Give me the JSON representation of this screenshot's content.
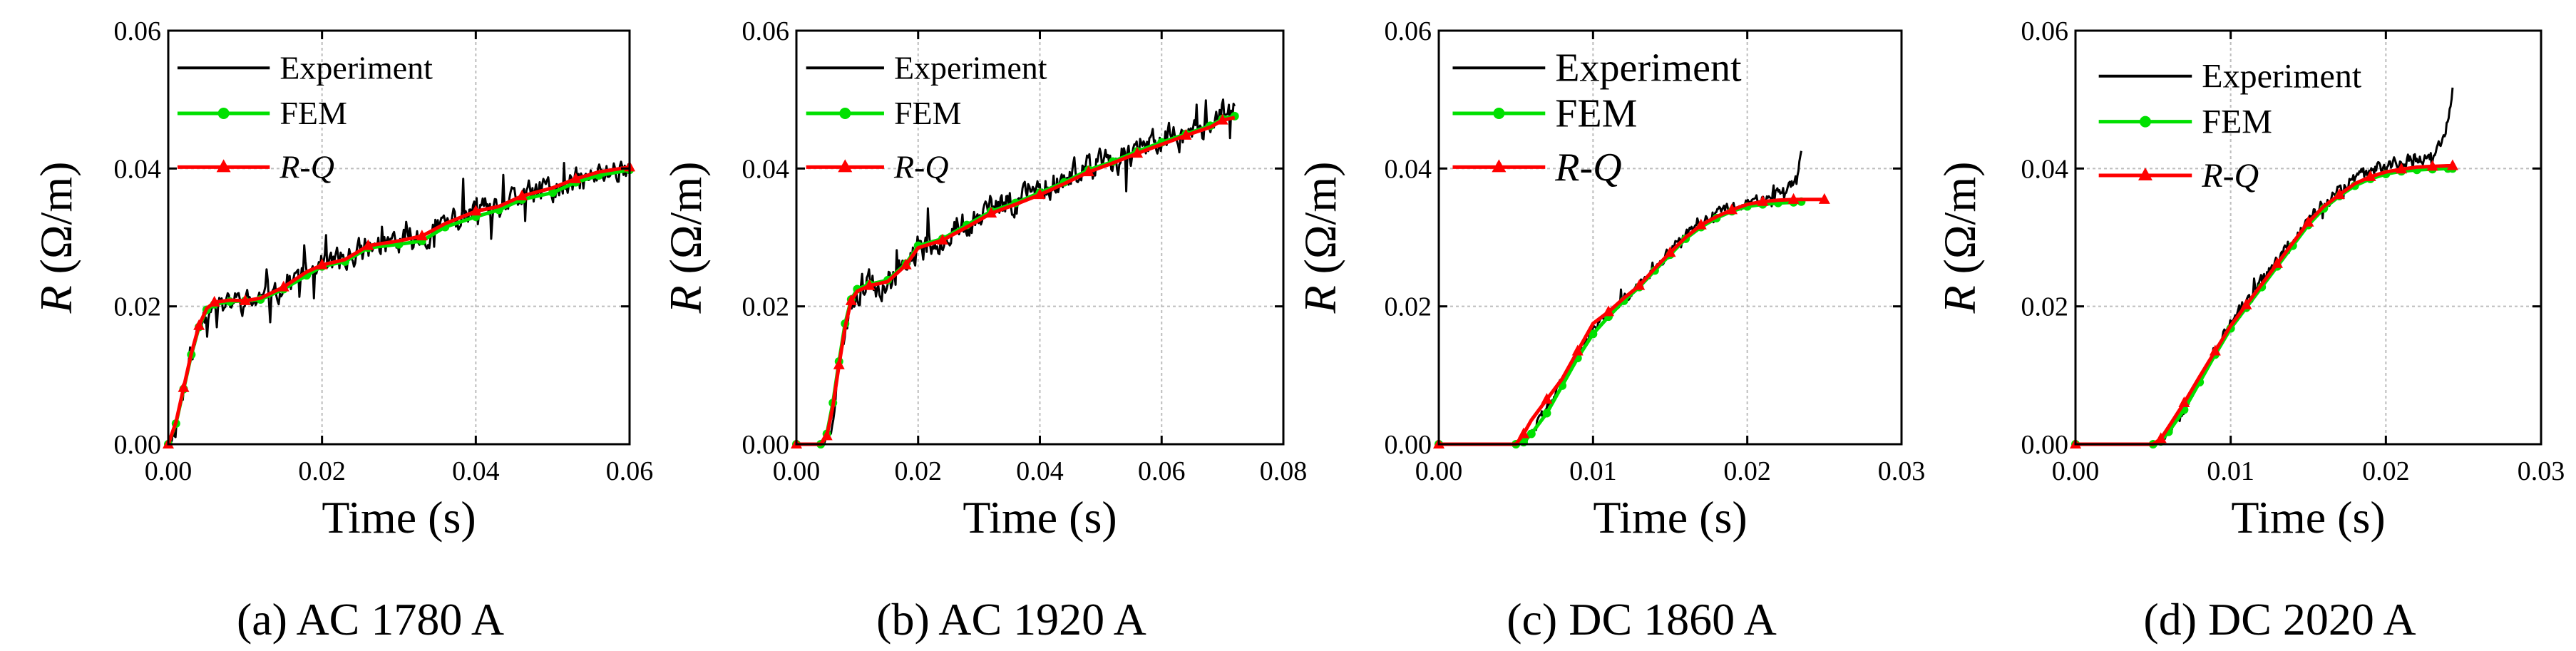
{
  "colors": {
    "experiment": "#000000",
    "fem": "#00e000",
    "rq": "#ff0000",
    "grid": "#bdbdbd"
  },
  "chart_data": [
    {
      "type": "line",
      "caption": "(a) AC 1780 A",
      "xlabel": "Time (s)",
      "ylabel_var": "R",
      "ylabel_unit": " (Ω/m)",
      "xlim": [
        0,
        0.06
      ],
      "ylim": [
        0,
        0.06
      ],
      "xticks": [
        0,
        0.02,
        0.04,
        0.06
      ],
      "xtick_labels": [
        "0.00",
        "0.02",
        "0.04",
        "0.06"
      ],
      "yticks": [
        0,
        0.02,
        0.04,
        0.06
      ],
      "ytick_labels": [
        "0.00",
        "0.02",
        "0.04",
        "0.06"
      ],
      "legend": [
        "Experiment",
        "FEM",
        "R-Q"
      ],
      "series": [
        {
          "name": "Experiment",
          "noise": 0.0016,
          "seed": 11,
          "x": [
            0,
            0.001,
            0.002,
            0.003,
            0.004,
            0.005,
            0.006,
            0.008,
            0.01,
            0.012,
            0.015,
            0.018,
            0.02,
            0.023,
            0.026,
            0.03,
            0.033,
            0.036,
            0.04,
            0.043,
            0.046,
            0.05,
            0.053,
            0.056,
            0.06
          ],
          "y": [
            0,
            0.003,
            0.008,
            0.013,
            0.017,
            0.0195,
            0.0205,
            0.0208,
            0.0205,
            0.021,
            0.023,
            0.025,
            0.026,
            0.027,
            0.0285,
            0.0295,
            0.03,
            0.032,
            0.0335,
            0.034,
            0.036,
            0.037,
            0.038,
            0.039,
            0.0405
          ]
        },
        {
          "name": "FEM",
          "x": [
            0,
            0.001,
            0.002,
            0.003,
            0.004,
            0.005,
            0.006,
            0.008,
            0.01,
            0.012,
            0.015,
            0.018,
            0.02,
            0.023,
            0.026,
            0.03,
            0.033,
            0.036,
            0.04,
            0.043,
            0.046,
            0.05,
            0.053,
            0.056,
            0.06
          ],
          "y": [
            0,
            0.003,
            0.008,
            0.013,
            0.017,
            0.0195,
            0.0203,
            0.0207,
            0.0208,
            0.021,
            0.0225,
            0.0245,
            0.0258,
            0.0265,
            0.0285,
            0.029,
            0.0295,
            0.0315,
            0.033,
            0.034,
            0.0355,
            0.0365,
            0.038,
            0.039,
            0.0398
          ]
        },
        {
          "name": "R-Q",
          "marker": "triangle",
          "x": [
            0,
            0.001,
            0.002,
            0.003,
            0.004,
            0.005,
            0.006,
            0.008,
            0.01,
            0.012,
            0.015,
            0.018,
            0.02,
            0.023,
            0.026,
            0.03,
            0.033,
            0.036,
            0.04,
            0.043,
            0.046,
            0.05,
            0.053,
            0.056,
            0.06
          ],
          "y": [
            0,
            0.0032,
            0.0082,
            0.0132,
            0.0172,
            0.0197,
            0.0206,
            0.0209,
            0.0208,
            0.0212,
            0.0228,
            0.025,
            0.026,
            0.0268,
            0.0288,
            0.0295,
            0.0302,
            0.032,
            0.0338,
            0.0345,
            0.036,
            0.0372,
            0.0385,
            0.0395,
            0.0402
          ]
        }
      ]
    },
    {
      "type": "line",
      "caption": "(b) AC 1920 A",
      "xlabel": "Time (s)",
      "ylabel_var": "R",
      "ylabel_unit": " (Ω/m)",
      "xlim": [
        0,
        0.08
      ],
      "ylim": [
        0,
        0.06
      ],
      "xticks": [
        0,
        0.02,
        0.04,
        0.06,
        0.08
      ],
      "xtick_labels": [
        "0.00",
        "0.02",
        "0.04",
        "0.06",
        "0.08"
      ],
      "yticks": [
        0,
        0.02,
        0.04,
        0.06
      ],
      "ytick_labels": [
        "0.00",
        "0.02",
        "0.04",
        "0.06"
      ],
      "legend": [
        "Experiment",
        "FEM",
        "R-Q"
      ],
      "series": [
        {
          "name": "Experiment",
          "noise": 0.0018,
          "seed": 23,
          "x": [
            0,
            0.004,
            0.005,
            0.006,
            0.007,
            0.008,
            0.009,
            0.01,
            0.012,
            0.015,
            0.018,
            0.02,
            0.024,
            0.028,
            0.032,
            0.036,
            0.04,
            0.044,
            0.048,
            0.052,
            0.056,
            0.06,
            0.064,
            0.068,
            0.07,
            0.072
          ],
          "y": [
            0,
            0,
            0.001,
            0.005,
            0.011,
            0.017,
            0.021,
            0.0225,
            0.023,
            0.0235,
            0.026,
            0.0285,
            0.03,
            0.032,
            0.034,
            0.0355,
            0.037,
            0.0385,
            0.04,
            0.041,
            0.043,
            0.044,
            0.045,
            0.0465,
            0.048,
            0.048
          ]
        },
        {
          "name": "FEM",
          "x": [
            0,
            0.004,
            0.005,
            0.006,
            0.007,
            0.008,
            0.009,
            0.01,
            0.012,
            0.015,
            0.018,
            0.02,
            0.024,
            0.028,
            0.032,
            0.036,
            0.04,
            0.044,
            0.048,
            0.052,
            0.056,
            0.06,
            0.064,
            0.068,
            0.07,
            0.072
          ],
          "y": [
            0,
            0,
            0.0015,
            0.006,
            0.012,
            0.0175,
            0.021,
            0.0225,
            0.0232,
            0.0238,
            0.0262,
            0.0288,
            0.0298,
            0.0318,
            0.0338,
            0.035,
            0.0365,
            0.038,
            0.0398,
            0.041,
            0.0425,
            0.0438,
            0.045,
            0.0462,
            0.0472,
            0.0476
          ]
        },
        {
          "name": "R-Q",
          "marker": "triangle",
          "x": [
            0,
            0.004,
            0.005,
            0.006,
            0.007,
            0.008,
            0.009,
            0.01,
            0.012,
            0.015,
            0.018,
            0.02,
            0.024,
            0.028,
            0.032,
            0.036,
            0.04,
            0.044,
            0.048,
            0.052,
            0.056,
            0.06,
            0.064,
            0.068,
            0.07,
            0.072
          ],
          "y": [
            0,
            0,
            0.0012,
            0.0055,
            0.0115,
            0.017,
            0.0208,
            0.0222,
            0.023,
            0.0236,
            0.026,
            0.0285,
            0.0296,
            0.0315,
            0.0335,
            0.0348,
            0.0362,
            0.0378,
            0.0395,
            0.0408,
            0.0422,
            0.0435,
            0.0448,
            0.046,
            0.047,
            0.0474
          ]
        }
      ]
    },
    {
      "type": "line",
      "caption": "(c) DC 1860 A",
      "xlabel": "Time (s)",
      "ylabel_var": "R",
      "ylabel_unit": " (Ω/m)",
      "xlim": [
        0,
        0.03
      ],
      "ylim": [
        0,
        0.06
      ],
      "xticks": [
        0,
        0.01,
        0.02,
        0.03
      ],
      "xtick_labels": [
        "0.00",
        "0.01",
        "0.02",
        "0.03"
      ],
      "yticks": [
        0,
        0.02,
        0.04,
        0.06
      ],
      "ytick_labels": [
        "0.00",
        "0.02",
        "0.04",
        "0.06"
      ],
      "legend": [
        "Experiment",
        "FEM",
        "R-Q"
      ],
      "series": [
        {
          "name": "Experiment",
          "noise": 0.0006,
          "seed": 37,
          "x": [
            0,
            0.005,
            0.0055,
            0.006,
            0.007,
            0.008,
            0.009,
            0.01,
            0.011,
            0.012,
            0.013,
            0.014,
            0.015,
            0.016,
            0.017,
            0.018,
            0.019,
            0.02,
            0.021,
            0.022,
            0.0225,
            0.023,
            0.0233,
            0.0235
          ],
          "y": [
            0,
            0,
            0.0005,
            0.002,
            0.005,
            0.009,
            0.013,
            0.0165,
            0.019,
            0.021,
            0.023,
            0.0255,
            0.028,
            0.0305,
            0.032,
            0.0335,
            0.0345,
            0.035,
            0.0358,
            0.0365,
            0.0372,
            0.038,
            0.04,
            0.042
          ]
        },
        {
          "name": "FEM",
          "x": [
            0,
            0.005,
            0.0055,
            0.006,
            0.007,
            0.008,
            0.009,
            0.01,
            0.011,
            0.012,
            0.013,
            0.014,
            0.015,
            0.016,
            0.017,
            0.018,
            0.019,
            0.02,
            0.021,
            0.022,
            0.023,
            0.0235
          ],
          "y": [
            0,
            0,
            0.0003,
            0.0015,
            0.0045,
            0.0085,
            0.0125,
            0.016,
            0.0185,
            0.0208,
            0.0228,
            0.0252,
            0.0275,
            0.0298,
            0.0315,
            0.0328,
            0.0338,
            0.0345,
            0.0348,
            0.035,
            0.0351,
            0.0352
          ]
        },
        {
          "name": "R-Q",
          "marker": "triangle",
          "x": [
            0,
            0.005,
            0.0055,
            0.006,
            0.007,
            0.008,
            0.009,
            0.01,
            0.011,
            0.012,
            0.013,
            0.014,
            0.015,
            0.016,
            0.017,
            0.018,
            0.019,
            0.02,
            0.021,
            0.022,
            0.023,
            0.024,
            0.025
          ],
          "y": [
            0,
            0,
            0.0015,
            0.0035,
            0.0065,
            0.0095,
            0.0135,
            0.0175,
            0.0192,
            0.0212,
            0.023,
            0.0255,
            0.0278,
            0.03,
            0.0318,
            0.033,
            0.034,
            0.0348,
            0.0352,
            0.0354,
            0.0355,
            0.0355,
            0.0355
          ]
        }
      ]
    },
    {
      "type": "line",
      "caption": "(d) DC 2020 A",
      "xlabel": "Time (s)",
      "ylabel_var": "R",
      "ylabel_unit": " (Ω/m)",
      "xlim": [
        0,
        0.03
      ],
      "ylim": [
        0,
        0.06
      ],
      "xticks": [
        0,
        0.01,
        0.02,
        0.03
      ],
      "xtick_labels": [
        "0.00",
        "0.01",
        "0.02",
        "0.03"
      ],
      "yticks": [
        0,
        0.02,
        0.04,
        0.06
      ],
      "ytick_labels": [
        "0.00",
        "0.02",
        "0.04",
        "0.06"
      ],
      "legend": [
        "Experiment",
        "FEM",
        "R-Q"
      ],
      "series": [
        {
          "name": "Experiment",
          "noise": 0.0008,
          "seed": 53,
          "x": [
            0,
            0.005,
            0.0055,
            0.006,
            0.007,
            0.008,
            0.009,
            0.01,
            0.011,
            0.012,
            0.013,
            0.014,
            0.015,
            0.016,
            0.017,
            0.018,
            0.019,
            0.02,
            0.021,
            0.022,
            0.023,
            0.0235,
            0.024,
            0.0243
          ],
          "y": [
            0,
            0,
            0.0005,
            0.002,
            0.0055,
            0.0095,
            0.0135,
            0.0175,
            0.0205,
            0.0235,
            0.0265,
            0.0295,
            0.0325,
            0.035,
            0.037,
            0.0385,
            0.0395,
            0.0405,
            0.041,
            0.0415,
            0.042,
            0.0435,
            0.047,
            0.052
          ]
        },
        {
          "name": "FEM",
          "x": [
            0,
            0.005,
            0.0055,
            0.006,
            0.007,
            0.008,
            0.009,
            0.01,
            0.011,
            0.012,
            0.013,
            0.014,
            0.015,
            0.016,
            0.017,
            0.018,
            0.019,
            0.02,
            0.021,
            0.022,
            0.023,
            0.024,
            0.0243
          ],
          "y": [
            0,
            0,
            0.0004,
            0.0018,
            0.005,
            0.009,
            0.013,
            0.0168,
            0.0198,
            0.0228,
            0.0258,
            0.0288,
            0.0318,
            0.0342,
            0.036,
            0.0375,
            0.0385,
            0.0392,
            0.0396,
            0.0398,
            0.0399,
            0.04,
            0.04
          ]
        },
        {
          "name": "R-Q",
          "marker": "triangle",
          "x": [
            0,
            0.005,
            0.0055,
            0.006,
            0.007,
            0.008,
            0.009,
            0.01,
            0.011,
            0.012,
            0.013,
            0.014,
            0.015,
            0.016,
            0.017,
            0.018,
            0.019,
            0.02,
            0.021,
            0.022,
            0.023,
            0.024,
            0.0243
          ],
          "y": [
            0,
            0,
            0.0008,
            0.0025,
            0.006,
            0.0098,
            0.0135,
            0.0172,
            0.0202,
            0.0232,
            0.0262,
            0.0292,
            0.0322,
            0.0345,
            0.0362,
            0.0378,
            0.0388,
            0.0395,
            0.0399,
            0.0402,
            0.0403,
            0.0404,
            0.0404
          ]
        }
      ]
    }
  ]
}
